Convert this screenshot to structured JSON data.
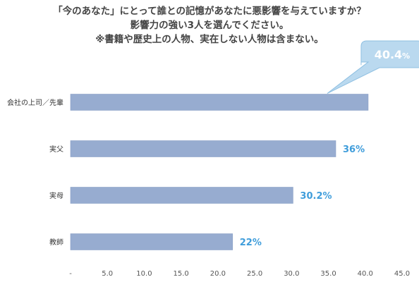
{
  "title_lines": [
    "「今のあなた」にとって誰との記憶があなたに悪影響を与えていますか？",
    "影響力の強い3人を選んでください。",
    "※書籍や歴史上の人物、実在しない人物は含まない。"
  ],
  "colors": {
    "bar": "#97acd0",
    "bar_stroke": "#8aa0c6",
    "label": "#3f9ddb",
    "callout_fill": "#bad9ef",
    "callout_stroke": "#8fc0e2",
    "callout_text": "#ffffff",
    "axis_text": "#555555",
    "category_text": "#333333",
    "title_text": "#444444"
  },
  "chart_data": {
    "type": "bar",
    "orientation": "horizontal",
    "categories": [
      "会社の上司／先輩",
      "実父",
      "実母",
      "教師"
    ],
    "values": [
      40.4,
      36,
      30.2,
      22
    ],
    "value_labels": [
      "40.4%",
      "36%",
      "30.2%",
      "22%"
    ],
    "highlight_label": {
      "value": "40.4",
      "unit": "%"
    },
    "xlim": [
      0,
      45
    ],
    "xticks": [
      "-",
      "5.0",
      "10.0",
      "15.0",
      "20.0",
      "25.0",
      "30.0",
      "35.0",
      "40.0",
      "45.0"
    ],
    "grid": false,
    "legend": "none"
  }
}
